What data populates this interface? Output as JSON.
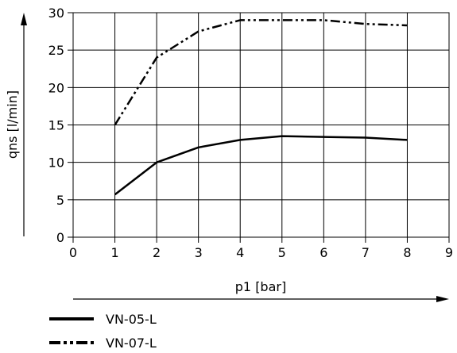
{
  "chart_data": {
    "type": "line",
    "xlabel": "p1 [bar]",
    "ylabel": "qns [l/min]",
    "xlim": [
      0,
      9
    ],
    "ylim": [
      0,
      30
    ],
    "xticks": [
      "0",
      "1",
      "2",
      "3",
      "4",
      "5",
      "6",
      "7",
      "8",
      "9"
    ],
    "yticks": [
      "0",
      "5",
      "10",
      "15",
      "20",
      "25",
      "30"
    ],
    "grid": true,
    "legend_position": "bottom-left",
    "series": [
      {
        "name": "VN-05-L",
        "line_style": "solid",
        "x": [
          1,
          2,
          3,
          4,
          5,
          6,
          7,
          8
        ],
        "y": [
          5.7,
          10.0,
          12.0,
          13.0,
          13.5,
          13.4,
          13.3,
          13.0
        ]
      },
      {
        "name": "VN-07-L",
        "line_style": "dash-dot-dot",
        "x": [
          1,
          2,
          3,
          4,
          5,
          6,
          7,
          8
        ],
        "y": [
          15.0,
          24.0,
          27.5,
          29.0,
          29.0,
          29.0,
          28.5,
          28.3
        ]
      }
    ]
  }
}
